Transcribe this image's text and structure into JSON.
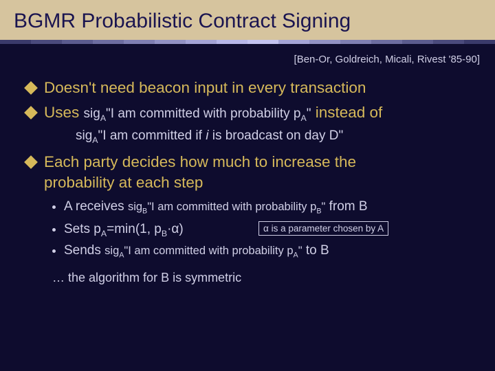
{
  "background_color": "#0e0c2e",
  "title_bar_color": "#d6c49e",
  "title_color": "#1a1450",
  "accent_color": "#d6b95a",
  "body_text_color": "#d0cfe6",
  "divider_colors": [
    "#3a3a6a",
    "#4a4a7c",
    "#5b5b8e",
    "#6d6da0",
    "#7f7fb2",
    "#9292c4",
    "#a4a4d6",
    "#b7b7e8",
    "#c3c3f0",
    "#a4a4d6",
    "#9292c4",
    "#7f7fb2",
    "#6d6da0",
    "#5b5b8e",
    "#4a4a7c",
    "#3a3a6a"
  ],
  "title": "BGMR Probabilistic Contract Signing",
  "citation": "[Ben-Or, Goldreich, Micali, Rivest '85-90]",
  "b1": "Doesn't need beacon input in every transaction",
  "b2_word": "Uses ",
  "b2_sig": "sig",
  "b2_sub": "A",
  "b2_quote": "\"I am committed with probability p",
  "b2_psub": "A",
  "b2_end": "\"",
  "b2_instead": " instead of",
  "b2_line2_pre": "sig",
  "b2_line2_sub": "A",
  "b2_line2_q": "\"I am committed if ",
  "b2_line2_i": "i",
  "b2_line2_rest": " is broadcast on day D\"",
  "b3_l1": "Each party decides how much to increase the",
  "b3_l2": "probability at each step",
  "s1_pre": "A receives ",
  "s1_sig": "sig",
  "s1_sub": "B",
  "s1_q": "\"I am committed with probability p",
  "s1_psub": "B",
  "s1_end": "\"",
  "s1_from": " from B",
  "s2_pre": "Sets p",
  "s2_sub": "A",
  "s2_mid": "=min(1, p",
  "s2_sub2": "B",
  "s2_dot": "·",
  "s2_alpha": "α",
  "s2_close": ")",
  "s2_box_alpha": "α",
  "s2_box_text": " is a parameter chosen by A",
  "s3_pre": "Sends ",
  "s3_sig": "sig",
  "s3_sub": "A",
  "s3_q": "\"I am committed with probability p",
  "s3_psub": "A",
  "s3_end": "\"",
  "s3_to": " to B",
  "closing": "… the algorithm for B is symmetric"
}
